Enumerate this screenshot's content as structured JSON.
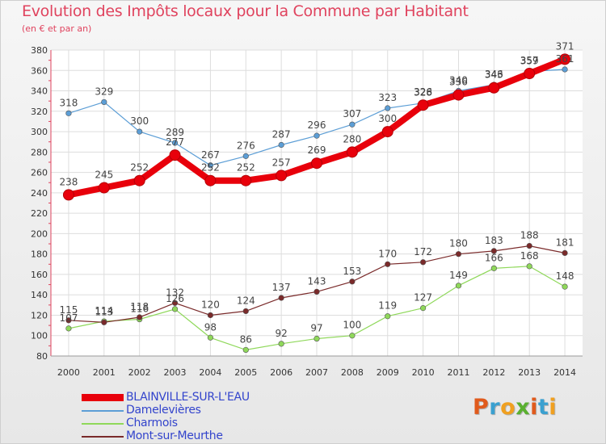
{
  "header": {
    "title": "Evolution des Impôts locaux pour la Commune par Habitant",
    "subtitle": "(en € et par an)"
  },
  "logo": {
    "text": "Proxiti",
    "letters": [
      "P",
      "r",
      "o",
      "x",
      "i",
      "t",
      "i"
    ],
    "colors": [
      "#e05a1c",
      "#3aa0d0",
      "#f0a020",
      "#5ab030",
      "#e05a1c",
      "#3aa0d0",
      "#f0a020"
    ]
  },
  "chart_data": {
    "type": "line",
    "x": [
      2000,
      2001,
      2002,
      2003,
      2004,
      2005,
      2006,
      2007,
      2008,
      2009,
      2010,
      2011,
      2012,
      2013,
      2014
    ],
    "ylim": [
      80,
      380
    ],
    "yticks": [
      80,
      100,
      120,
      140,
      160,
      180,
      200,
      220,
      240,
      260,
      280,
      300,
      320,
      340,
      360,
      380
    ],
    "grid": true,
    "legend_position": "bottom-left",
    "series": [
      {
        "name": "BLAINVILLE-SUR-L'EAU",
        "color": "#e8000b",
        "values": [
          238,
          245,
          252,
          277,
          252,
          252,
          257,
          269,
          280,
          300,
          326,
          336,
          343,
          357,
          371
        ]
      },
      {
        "name": "Damelevières",
        "color": "#5c9ed6",
        "values": [
          318,
          329,
          300,
          289,
          267,
          276,
          287,
          296,
          307,
          323,
          328,
          340,
          346,
          359,
          361
        ]
      },
      {
        "name": "Charmois",
        "color": "#8fd85a",
        "values": [
          107,
          114,
          116,
          126,
          98,
          86,
          92,
          97,
          100,
          119,
          127,
          149,
          166,
          168,
          148
        ]
      },
      {
        "name": "Mont-sur-Meurthe",
        "color": "#7a2a2a",
        "values": [
          115,
          113,
          118,
          132,
          120,
          124,
          137,
          143,
          153,
          170,
          172,
          180,
          183,
          188,
          181
        ]
      }
    ]
  }
}
